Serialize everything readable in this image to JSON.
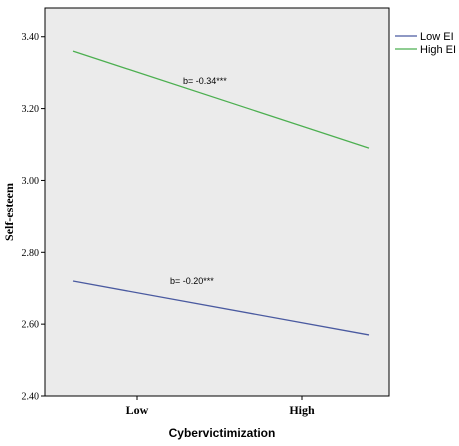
{
  "chart_data": {
    "type": "line",
    "xlabel": "Cybervictimization",
    "ylabel": "Self-esteem",
    "categories": [
      "Low",
      "High"
    ],
    "ylim": [
      2.4,
      3.48
    ],
    "yticks": [
      "2.40",
      "2.60",
      "2.80",
      "3.00",
      "3.20",
      "3.40"
    ],
    "ytick_values": [
      2.4,
      2.6,
      2.8,
      3.0,
      3.2,
      3.4
    ],
    "series": [
      {
        "name": "Low EI",
        "values": [
          2.72,
          2.57
        ],
        "color": "#4a5aa0",
        "annotation": "b= -0.20***"
      },
      {
        "name": "High EI",
        "values": [
          3.36,
          3.09
        ],
        "color": "#4caf50",
        "annotation": "b= -0.34***"
      }
    ],
    "plot_background": "#ebebeb",
    "grid": false,
    "legend_position": "right"
  }
}
